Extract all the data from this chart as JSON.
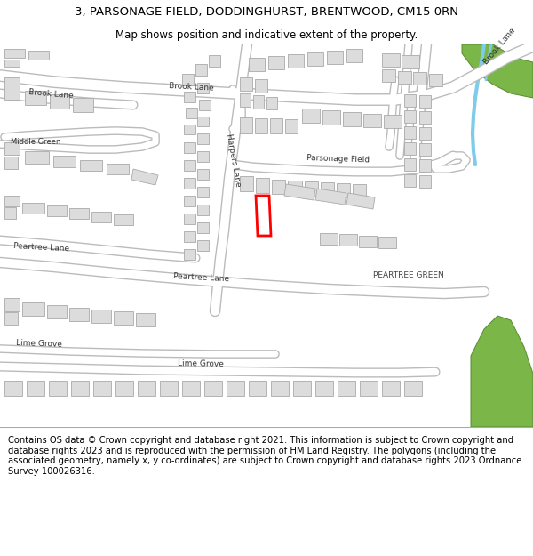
{
  "title_line1": "3, PARSONAGE FIELD, DODDINGHURST, BRENTWOOD, CM15 0RN",
  "title_line2": "Map shows position and indicative extent of the property.",
  "footer_text": "Contains OS data © Crown copyright and database right 2021. This information is subject to Crown copyright and database rights 2023 and is reproduced with the permission of HM Land Registry. The polygons (including the associated geometry, namely x, y co-ordinates) are subject to Crown copyright and database rights 2023 Ordnance Survey 100026316.",
  "bg_color": "#ffffff",
  "map_bg": "#f0f0f0",
  "building_color": "#dcdcdc",
  "building_edge": "#aaaaaa",
  "road_color": "#ffffff",
  "road_edge": "#bbbbbb",
  "green_color": "#7ab648",
  "green_dark": "#5a8a30",
  "water_color": "#7ecbea",
  "highlight_color": "#ff0000",
  "title_fontsize": 9.5,
  "subtitle_fontsize": 8.5,
  "footer_fontsize": 7.2,
  "label_fontsize": 6.5
}
